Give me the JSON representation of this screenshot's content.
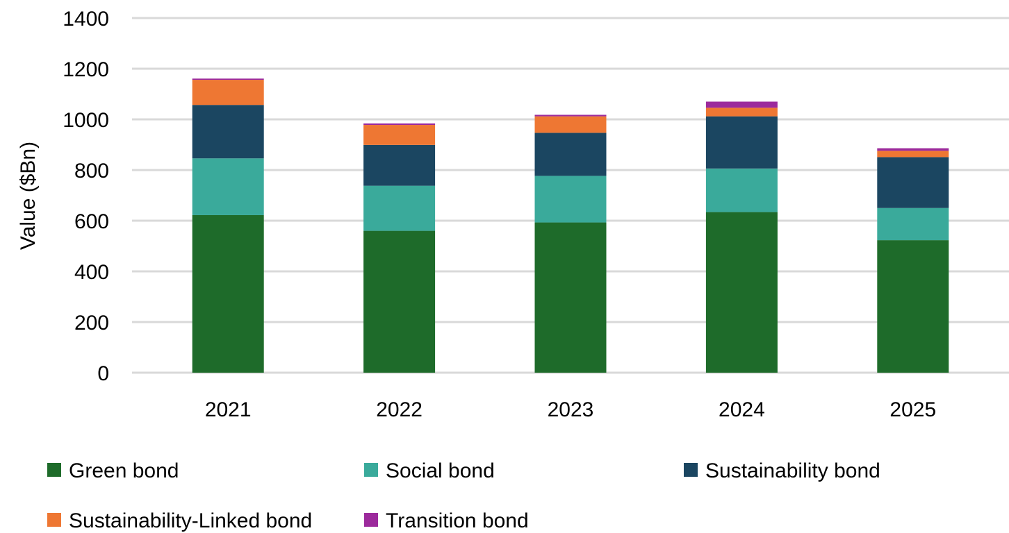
{
  "chart_data": {
    "type": "bar",
    "stacked": true,
    "categories": [
      "2021",
      "2022",
      "2023",
      "2024",
      "2025"
    ],
    "series": [
      {
        "name": "Green bond",
        "color": "#1e6b2a",
        "values": [
          622,
          560,
          593,
          634,
          523
        ]
      },
      {
        "name": "Social bond",
        "color": "#3aaa9b",
        "values": [
          224,
          178,
          184,
          172,
          127
        ]
      },
      {
        "name": "Sustainability bond",
        "color": "#1b4661",
        "values": [
          211,
          161,
          170,
          206,
          201
        ]
      },
      {
        "name": "Sustainability-Linked bond",
        "color": "#ee7733",
        "values": [
          99,
          79,
          65,
          34,
          25
        ]
      },
      {
        "name": "Transition bond",
        "color": "#9c2a9c",
        "values": [
          5,
          6,
          6,
          24,
          10
        ]
      }
    ],
    "xlabel": "",
    "ylabel": "Value ($Bn)",
    "ylim": [
      0,
      1400
    ],
    "yticks": [
      0,
      200,
      400,
      600,
      800,
      1000,
      1200,
      1400
    ],
    "grid": true,
    "legend_position": "bottom"
  }
}
